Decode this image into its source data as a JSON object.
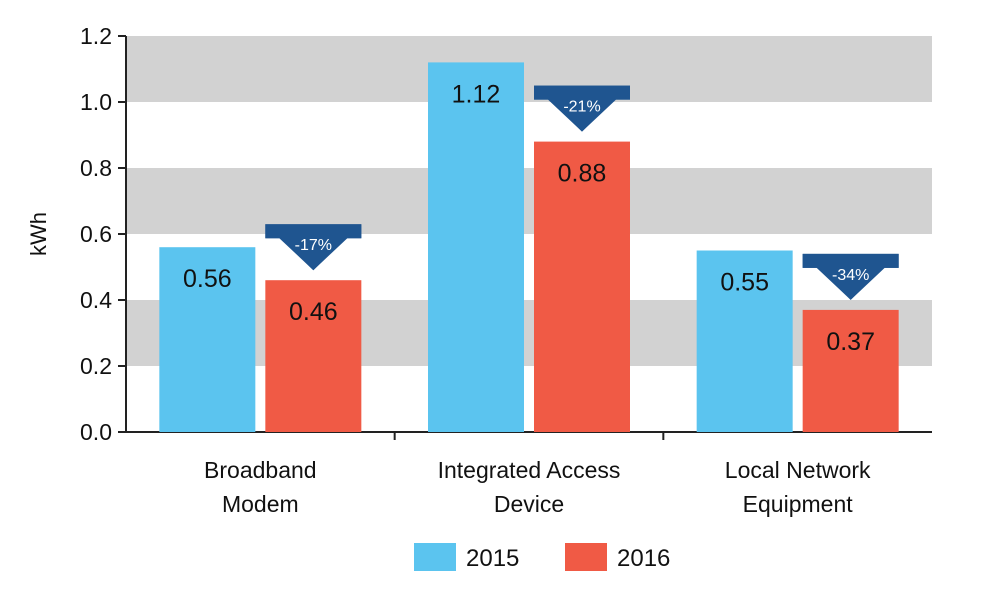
{
  "chart_data": {
    "type": "bar",
    "ylabel": "kWh",
    "xlabel": "",
    "ylim": [
      0,
      1.2
    ],
    "yticks": [
      "0.0",
      "0.2",
      "0.4",
      "0.6",
      "0.8",
      "1.0",
      "1.2"
    ],
    "categories": [
      [
        "Broadband",
        "Modem"
      ],
      [
        "Integrated Access",
        "Device"
      ],
      [
        "Local Network",
        "Equipment"
      ]
    ],
    "series": [
      {
        "name": "2015",
        "color": "#5bc4ef",
        "values": [
          0.56,
          1.12,
          0.55
        ],
        "labels": [
          "0.56",
          "1.12",
          "0.55"
        ]
      },
      {
        "name": "2016",
        "color": "#f05a45",
        "values": [
          0.46,
          0.88,
          0.37
        ],
        "labels": [
          "0.46",
          "0.88",
          "0.37"
        ]
      }
    ],
    "changes": [
      "-17%",
      "-21%",
      "-34%"
    ],
    "change_color": "#1f5590",
    "band_color": "#d2d2d2",
    "grid": "alternating bands",
    "legend": "bottom-center"
  }
}
